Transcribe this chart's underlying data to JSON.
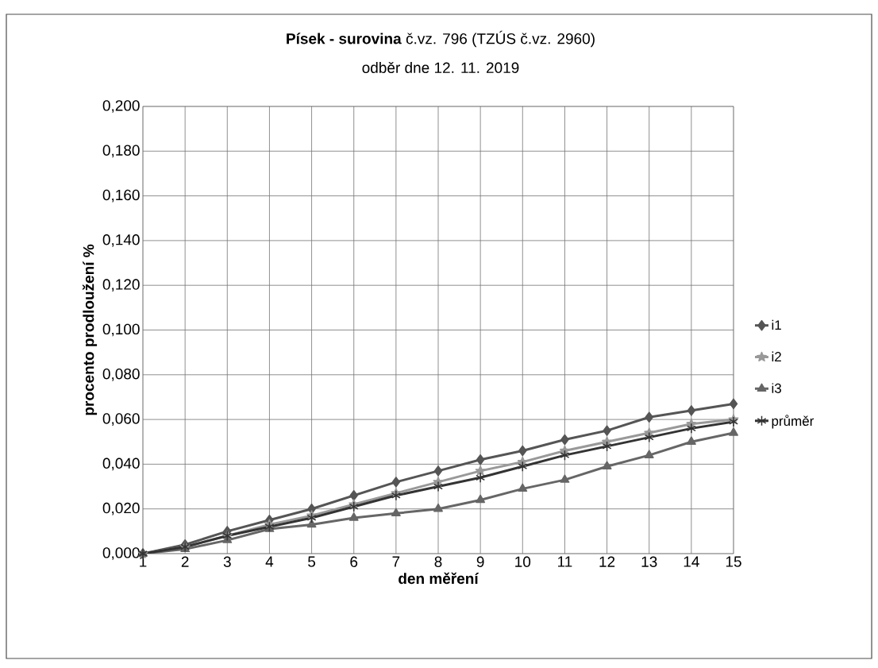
{
  "chart_data": {
    "type": "line",
    "title": "**Písek - surovina**   č.vz. 796 (TZÚS č.vz. 2960)",
    "subtitle": "odběr dne  12. 11. 2019",
    "xlabel": "den měření",
    "ylabel": "procento prodloužení %",
    "categories": [
      "1",
      "2",
      "3",
      "4",
      "5",
      "6",
      "7",
      "8",
      "9",
      "10",
      "11",
      "12",
      "13",
      "14",
      "15"
    ],
    "series": [
      {
        "name": "i1",
        "color": "#555555",
        "marker": "diamond",
        "values": [
          0,
          0.004,
          0.01,
          0.015,
          0.02,
          0.026,
          0.032,
          0.037,
          0.042,
          0.046,
          0.051,
          0.055,
          0.061,
          0.064,
          0.067
        ]
      },
      {
        "name": "i2",
        "color": "#999999",
        "marker": "star",
        "values": [
          0,
          0.003,
          0.008,
          0.013,
          0.017,
          0.022,
          0.027,
          0.032,
          0.037,
          0.041,
          0.046,
          0.05,
          0.054,
          0.058,
          0.06
        ]
      },
      {
        "name": "i3",
        "color": "#666666",
        "marker": "triangle",
        "values": [
          0,
          0.002,
          0.006,
          0.011,
          0.013,
          0.016,
          0.018,
          0.02,
          0.024,
          0.029,
          0.033,
          0.039,
          0.044,
          0.05,
          0.054
        ]
      },
      {
        "name": "průměr",
        "color": "#333333",
        "marker": "cross",
        "values": [
          0,
          0.003,
          0.008,
          0.012,
          0.016,
          0.021,
          0.026,
          0.03,
          0.034,
          0.039,
          0.044,
          0.048,
          0.052,
          0.056,
          0.059
        ]
      }
    ],
    "ylim": [
      0,
      0.2
    ],
    "yticks": [
      {
        "value": 0,
        "label": "0,000"
      },
      {
        "value": 0.02,
        "label": "0,020"
      },
      {
        "value": 0.04,
        "label": "0,040"
      },
      {
        "value": 0.06,
        "label": "0,060"
      },
      {
        "value": 0.08,
        "label": "0,080"
      },
      {
        "value": 0.1,
        "label": "0,100"
      },
      {
        "value": 0.12,
        "label": "0,120"
      },
      {
        "value": 0.14,
        "label": "0,140"
      },
      {
        "value": 0.16,
        "label": "0,160"
      },
      {
        "value": 0.18,
        "label": "0,180"
      },
      {
        "value": 0.2,
        "label": "0,200"
      }
    ],
    "grid": true,
    "legend": "right",
    "line_style": "solid"
  }
}
